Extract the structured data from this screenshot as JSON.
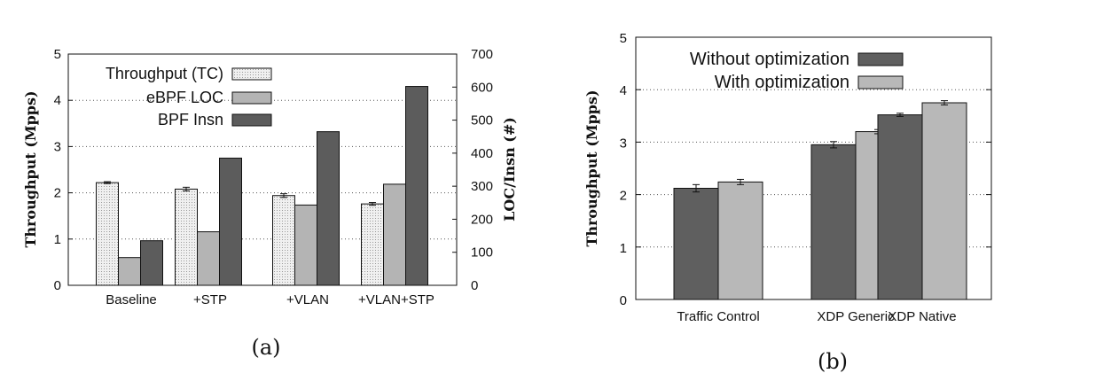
{
  "colors": {
    "tc_fill": "#f0f0f0",
    "loc_fill": "#b4b4b4",
    "insn_fill": "#5c5c5c",
    "without_fill": "#5f5f5f",
    "with_fill": "#b8b8b8"
  },
  "chart_data": [
    {
      "id": "a",
      "caption": "(a)",
      "type": "bar",
      "categories": [
        "Baseline",
        "+STP",
        "+VLAN",
        "+VLAN+STP"
      ],
      "series": [
        {
          "name": "Throughput (TC)",
          "axis": "left",
          "values": [
            2.22,
            2.08,
            1.94,
            1.76
          ],
          "errors": [
            0.02,
            0.04,
            0.04,
            0.03
          ]
        },
        {
          "name": "eBPF LOC",
          "axis": "right",
          "values": [
            84,
            162,
            243,
            306
          ]
        },
        {
          "name": "BPF Insn",
          "axis": "right",
          "values": [
            135,
            385,
            465,
            602
          ]
        }
      ],
      "ylabel": "Throughput (Mpps)",
      "y2label": "LOC/Insn (#)",
      "ylim": [
        0,
        5
      ],
      "y2lim": [
        0,
        700
      ],
      "yticks": [
        "0",
        "1",
        "2",
        "3",
        "4",
        "5"
      ],
      "y2ticks": [
        "0",
        "100",
        "200",
        "300",
        "400",
        "500",
        "600",
        "700"
      ],
      "grid": "horizontal dotted",
      "legend": "top-left"
    },
    {
      "id": "b",
      "caption": "(b)",
      "type": "bar",
      "categories": [
        "Traffic Control",
        "XDP Generic",
        "XDP Native"
      ],
      "series": [
        {
          "name": "Without optimization",
          "values": [
            2.12,
            2.95,
            3.52
          ],
          "errors": [
            0.07,
            0.06,
            0.03
          ]
        },
        {
          "name": "With optimization",
          "values": [
            2.24,
            3.2,
            3.75
          ],
          "errors": [
            0.05,
            0.04,
            0.04
          ]
        }
      ],
      "ylabel": "Throughput (Mpps)",
      "ylim": [
        0,
        5
      ],
      "yticks": [
        "0",
        "1",
        "2",
        "3",
        "4",
        "5"
      ],
      "grid": "horizontal dotted",
      "legend": "top-left"
    }
  ]
}
